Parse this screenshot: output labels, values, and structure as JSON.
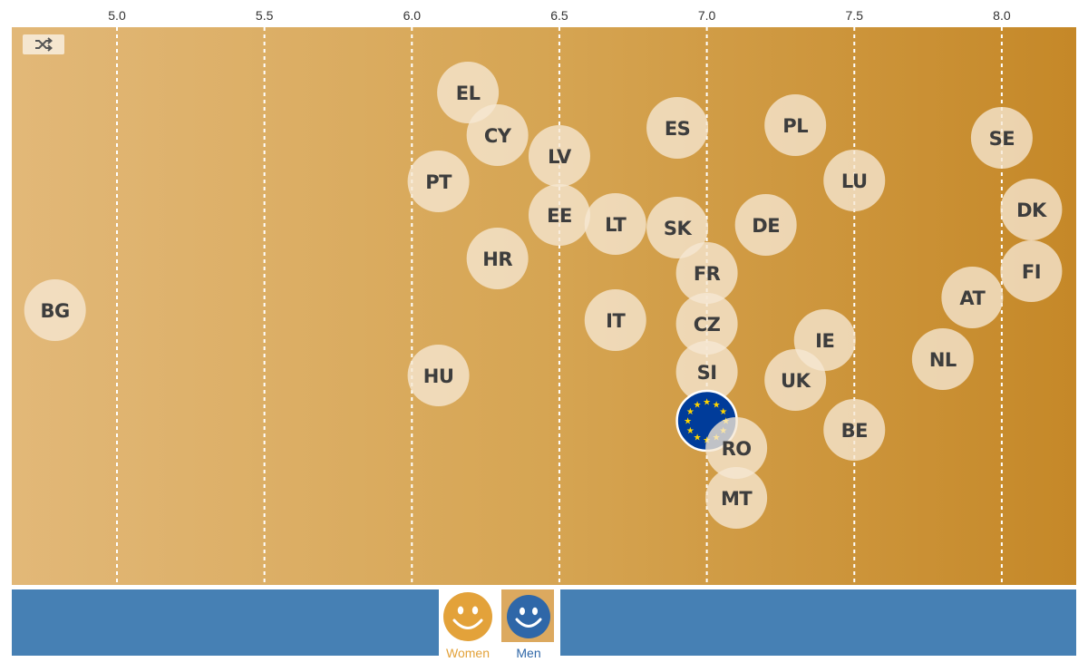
{
  "chart_data": {
    "type": "scatter",
    "title": "",
    "xlabel": "",
    "ylabel": "",
    "xlim": [
      4.64,
      8.26
    ],
    "x_ticks": [
      "5.0",
      "5.5",
      "6.0",
      "6.5",
      "7.0",
      "7.5",
      "8.0"
    ],
    "grid": "vertical dashed",
    "points": [
      {
        "label": "BG",
        "x": 4.79
      },
      {
        "label": "EL",
        "x": 6.19
      },
      {
        "label": "CY",
        "x": 6.29
      },
      {
        "label": "LV",
        "x": 6.5
      },
      {
        "label": "PT",
        "x": 6.09
      },
      {
        "label": "EE",
        "x": 6.5
      },
      {
        "label": "HR",
        "x": 6.29
      },
      {
        "label": "HU",
        "x": 6.09
      },
      {
        "label": "LT",
        "x": 6.69
      },
      {
        "label": "IT",
        "x": 6.69
      },
      {
        "label": "ES",
        "x": 6.9
      },
      {
        "label": "SK",
        "x": 6.9
      },
      {
        "label": "FR",
        "x": 7.0
      },
      {
        "label": "CZ",
        "x": 7.0
      },
      {
        "label": "SI",
        "x": 7.0
      },
      {
        "label": "EU",
        "x": 7.0,
        "emblem": true
      },
      {
        "label": "RO",
        "x": 7.1
      },
      {
        "label": "MT",
        "x": 7.1
      },
      {
        "label": "PL",
        "x": 7.3
      },
      {
        "label": "DE",
        "x": 7.2
      },
      {
        "label": "UK",
        "x": 7.3
      },
      {
        "label": "IE",
        "x": 7.4
      },
      {
        "label": "LU",
        "x": 7.5
      },
      {
        "label": "BE",
        "x": 7.5
      },
      {
        "label": "NL",
        "x": 7.8
      },
      {
        "label": "AT",
        "x": 7.9
      },
      {
        "label": "SE",
        "x": 8.0
      },
      {
        "label": "DK",
        "x": 8.1
      },
      {
        "label": "FI",
        "x": 8.1
      }
    ]
  },
  "colors": {
    "gradient_start": "#e2b878",
    "gradient_end": "#c58828",
    "bubble_fill": "#f6e8d3",
    "bottom_bar": "#4680b4",
    "eu_blue": "#003c9a",
    "eu_star": "#ffd400",
    "women": "#e3a23a",
    "men": "#2f67a8"
  },
  "controls": {
    "shuffle_icon": "shuffle-icon",
    "women_label": "Women",
    "men_label": "Men",
    "women_icon": "smiley-women-icon",
    "men_icon": "smiley-men-icon",
    "selected": "Men"
  }
}
